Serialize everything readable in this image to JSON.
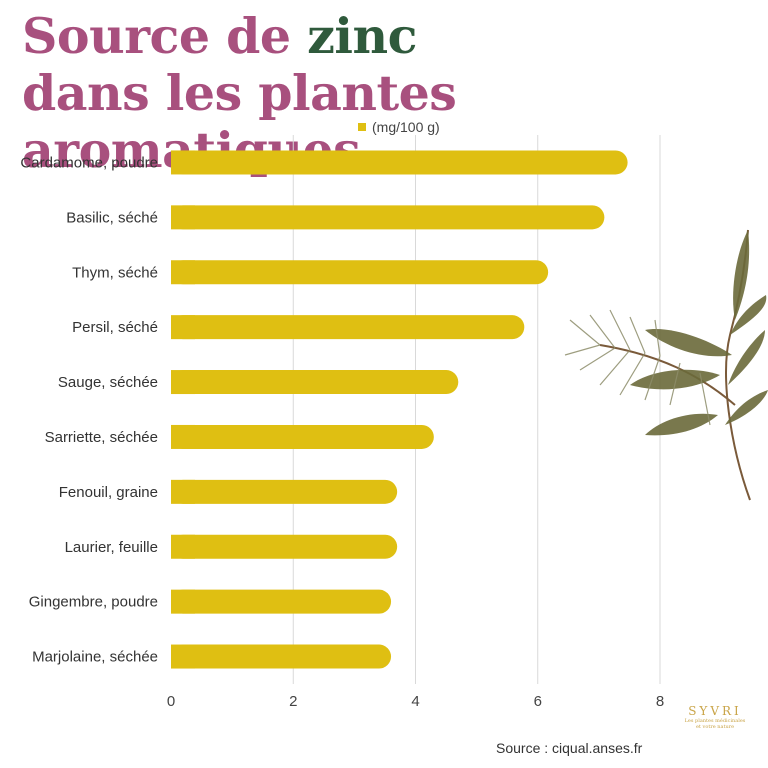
{
  "title": {
    "part1": "Source de ",
    "accent": "zinc",
    "line2": "dans les plantes aromatiques"
  },
  "colors": {
    "bar": "#dfbf12",
    "title": "#a8507e",
    "accent": "#2f5a3c",
    "grid": "#d9d9d9",
    "logo": "#c9a447"
  },
  "source": "Source : ciqual.anses.fr",
  "logo": {
    "name": "SYVRI",
    "tagline_1": "Les plantes médicinales",
    "tagline_2": "et votre nature"
  },
  "decoration_icon": "herb-sprig-illustration",
  "chart_data": {
    "type": "bar",
    "orientation": "horizontal",
    "categories": [
      "Cardamome, poudre",
      "Basilic, séché",
      "Thym, séché",
      "Persil, séché",
      "Sauge, séchée",
      "Sarriette, séchée",
      "Fenouil, graine",
      "Laurier, feuille",
      "Gingembre, poudre",
      "Marjolaine, séchée"
    ],
    "series": [
      {
        "name": "(mg/100 g)",
        "values": [
          7.47,
          7.09,
          6.17,
          5.78,
          4.7,
          4.3,
          3.7,
          3.7,
          3.6,
          3.6
        ]
      }
    ],
    "xticks": [
      "0",
      "2",
      "4",
      "6",
      "8"
    ],
    "xlim": [
      0,
      8
    ],
    "grid": true,
    "legend": "top"
  }
}
